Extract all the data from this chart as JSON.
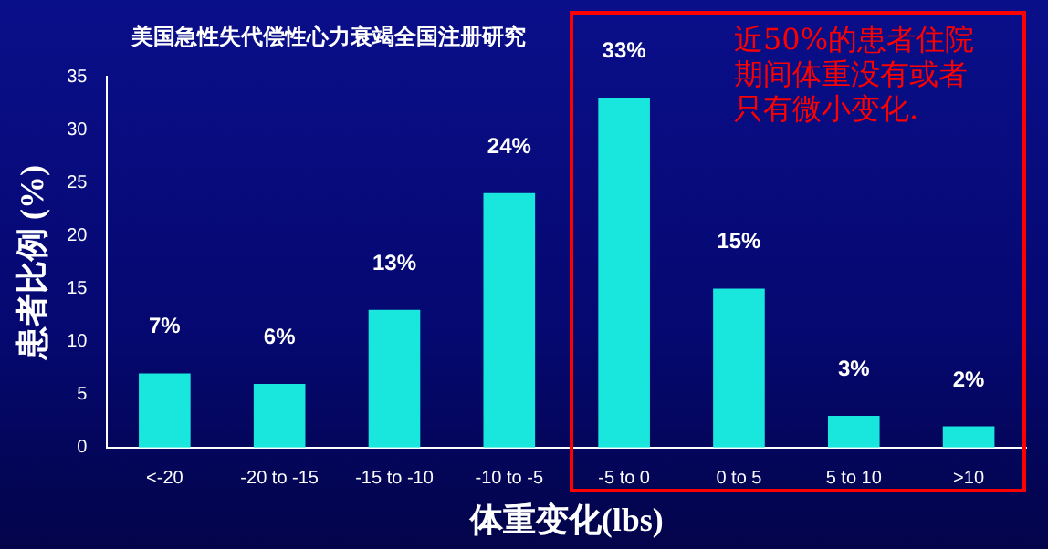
{
  "chart_data": {
    "type": "bar",
    "title": "美国急性失代偿性心力衰竭全国注册研究",
    "xlabel": "体重变化(lbs)",
    "ylabel": "患者比例 (%)",
    "categories": [
      "<-20",
      "-20 to -15",
      "-15 to -10",
      "-10 to -5",
      "-5 to 0",
      "0 to 5",
      "5 to 10",
      ">10"
    ],
    "values": [
      7,
      6,
      13,
      24,
      33,
      15,
      3,
      2
    ],
    "value_labels": [
      "7%",
      "6%",
      "13%",
      "24%",
      "33%",
      "15%",
      "3%",
      "2%"
    ],
    "color": "#19e6dc",
    "ylim": [
      0,
      35
    ],
    "yticks": [
      0,
      5,
      10,
      15,
      20,
      25,
      30,
      35
    ],
    "grid": false,
    "annotations": [
      "近50%的患者住院期间体重没有或者只有微小变化."
    ]
  }
}
